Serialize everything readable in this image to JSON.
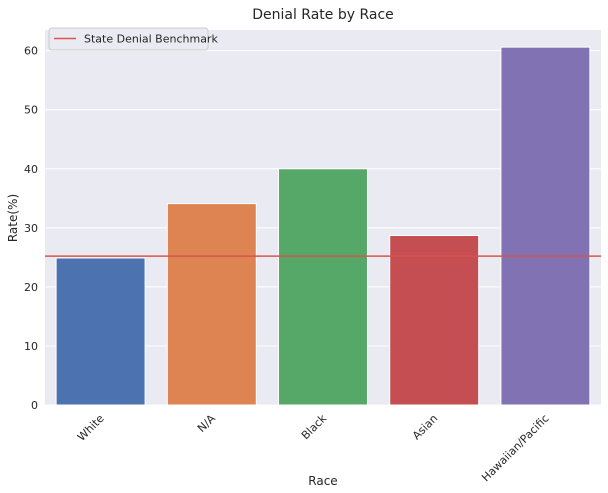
{
  "chart_data": {
    "type": "bar",
    "title": "Denial Rate by Race",
    "xlabel": "Race",
    "ylabel": "Rate(%)",
    "categories": [
      "White",
      "N/A",
      "Black",
      "Asian",
      "Hawaiian/Pacific"
    ],
    "values": [
      24.9,
      34.1,
      40.0,
      28.7,
      60.6
    ],
    "colors": [
      "#4c72b0",
      "#dd8452",
      "#55a868",
      "#c44e52",
      "#8172b3"
    ],
    "ylim": [
      0,
      63.5
    ],
    "yticks": [
      0,
      10,
      20,
      30,
      40,
      50,
      60
    ],
    "grid": true,
    "benchmark": {
      "label": "State Denial Benchmark",
      "value": 25.2,
      "color": "#d9534f"
    },
    "legend_position": "top-left",
    "background": "#eaeaf2"
  }
}
